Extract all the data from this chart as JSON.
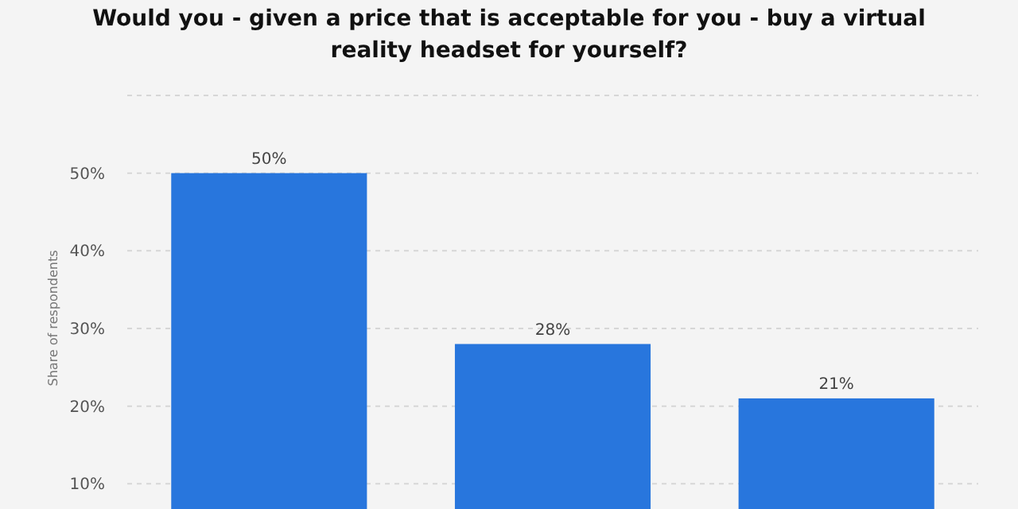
{
  "chart_data": {
    "type": "bar",
    "title": "Would you - given a price that is acceptable for you - buy a virtual reality headset for yourself?",
    "ylabel": "Share of respondents",
    "categories": [
      null,
      null,
      null
    ],
    "values": [
      50,
      28,
      21
    ],
    "value_labels": [
      "50%",
      "28%",
      "21%"
    ],
    "color": "#2876dd",
    "ylim": [
      0,
      60
    ],
    "yticks": [
      {
        "value": 10,
        "label": "10%"
      },
      {
        "value": 20,
        "label": "20%"
      },
      {
        "value": 30,
        "label": "30%"
      },
      {
        "value": 40,
        "label": "40%"
      },
      {
        "value": 50,
        "label": "50%"
      },
      {
        "value": 60,
        "label": null
      }
    ],
    "grid": "y"
  }
}
